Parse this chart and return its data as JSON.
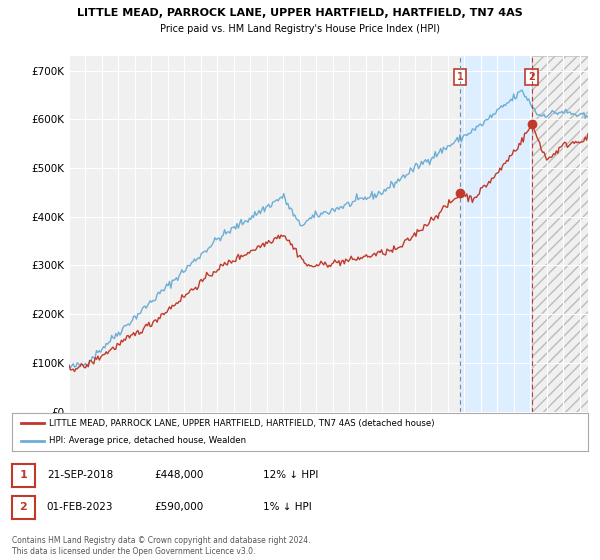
{
  "title_line1": "LITTLE MEAD, PARROCK LANE, UPPER HARTFIELD, HARTFIELD, TN7 4AS",
  "title_line2": "Price paid vs. HM Land Registry's House Price Index (HPI)",
  "ylabel_ticks": [
    "£0",
    "£100K",
    "£200K",
    "£300K",
    "£400K",
    "£500K",
    "£600K",
    "£700K"
  ],
  "ytick_values": [
    0,
    100000,
    200000,
    300000,
    400000,
    500000,
    600000,
    700000
  ],
  "ylim": [
    0,
    730000
  ],
  "xlim_start": 1995.0,
  "xlim_end": 2026.5,
  "hpi_color": "#6baed6",
  "price_color": "#c0392b",
  "marker1_x": 2018.72,
  "marker1_y": 448000,
  "marker2_x": 2023.08,
  "marker2_y": 590000,
  "vline1_x": 2018.72,
  "vline2_x": 2023.08,
  "shade_color": "#ddeeff",
  "legend_price_label": "LITTLE MEAD, PARROCK LANE, UPPER HARTFIELD, HARTFIELD, TN7 4AS (detached house)",
  "legend_hpi_label": "HPI: Average price, detached house, Wealden",
  "annotation1": "1",
  "annotation1_date": "21-SEP-2018",
  "annotation1_price": "£448,000",
  "annotation1_hpi": "12% ↓ HPI",
  "annotation2": "2",
  "annotation2_date": "01-FEB-2023",
  "annotation2_price": "£590,000",
  "annotation2_hpi": "1% ↓ HPI",
  "footnote1": "Contains HM Land Registry data © Crown copyright and database right 2024.",
  "footnote2": "This data is licensed under the Open Government Licence v3.0.",
  "bg_color": "#ffffff",
  "plot_bg_color": "#f0f0f0",
  "grid_color": "#ffffff"
}
